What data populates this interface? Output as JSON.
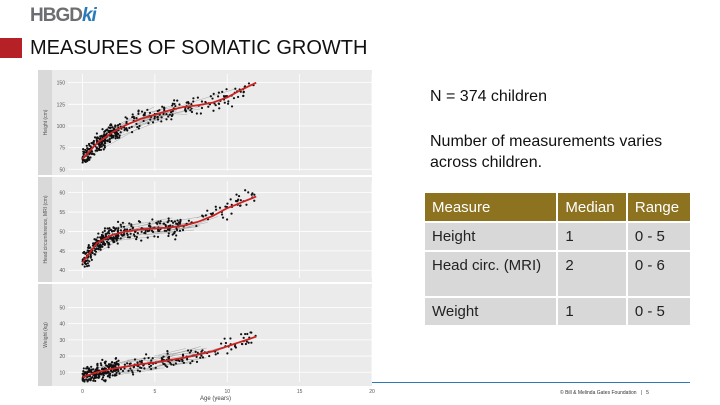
{
  "header": {
    "logo_main": "HBGD",
    "logo_suffix": "ki",
    "title": "MEASURES OF SOMATIC GROWTH"
  },
  "colors": {
    "accent": "#b52126",
    "table_header": "#8d7220",
    "trend": "#cc2222"
  },
  "info": {
    "n_text": "N = 374 children",
    "note": "Number of measurements varies across children."
  },
  "table": {
    "headers": [
      "Measure",
      "Median",
      "Range"
    ],
    "rows": [
      [
        "Height",
        "1",
        "0 - 5"
      ],
      [
        "Head circ. (MRI)",
        "2",
        "0 - 6"
      ],
      [
        "Weight",
        "1",
        "0 - 5"
      ]
    ]
  },
  "footer": {
    "text": "© Bill & Melinda Gates Foundation",
    "sep": "|",
    "page": "5"
  },
  "chart_data": {
    "type": "scatter",
    "xlabel": "Age (years)",
    "x_ticks": [
      0,
      5,
      10,
      15,
      20
    ],
    "xlim": [
      -1,
      20
    ],
    "panels": [
      {
        "ylabel": "Height (cm)",
        "ylim": [
          48,
          160
        ],
        "y_ticks": [
          50,
          75,
          100,
          125,
          150
        ],
        "trend_x": [
          0,
          1,
          2,
          3,
          4,
          5,
          6,
          7,
          8,
          9,
          10,
          11,
          12
        ],
        "trend_y": [
          62,
          80,
          92,
          101,
          108,
          113,
          118,
          122,
          124,
          127,
          133,
          142,
          150
        ]
      },
      {
        "ylabel": "Head circumference, MRI (cm)",
        "ylim": [
          38,
          63
        ],
        "y_ticks": [
          40,
          45,
          50,
          55,
          60
        ],
        "trend_x": [
          0,
          1,
          2,
          3,
          4,
          5,
          6,
          7,
          8,
          9,
          10,
          11,
          12
        ],
        "trend_y": [
          42,
          47,
          49,
          50,
          50.5,
          50.8,
          51,
          51.5,
          52.5,
          54,
          56,
          57.5,
          59
        ]
      },
      {
        "ylabel": "Weight (kg)",
        "ylim": [
          4,
          62
        ],
        "y_ticks": [
          10,
          20,
          30,
          40,
          50
        ],
        "trend_x": [
          0,
          1,
          2,
          3,
          4,
          5,
          6,
          7,
          8,
          9,
          10,
          11,
          12
        ],
        "trend_y": [
          7,
          10,
          12,
          13.5,
          15,
          16,
          17.5,
          19,
          21,
          23,
          26,
          29,
          32
        ]
      }
    ]
  }
}
